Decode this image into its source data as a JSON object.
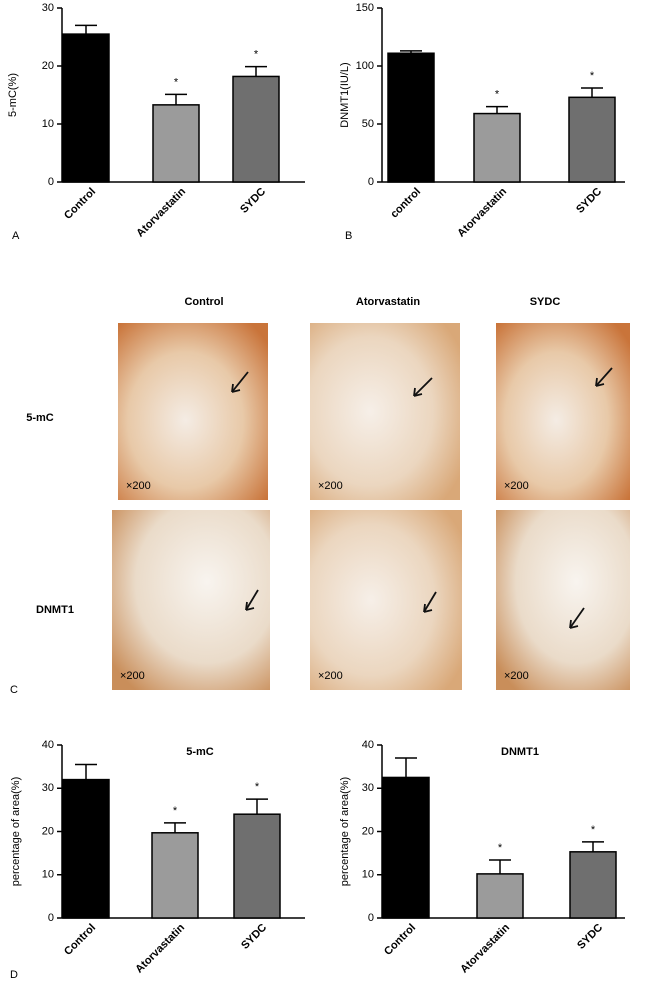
{
  "chart_data": [
    {
      "type": "bar",
      "panel": "A",
      "ylabel": "5-mC(%)",
      "categories": [
        "Control",
        "Atorvastatin",
        "SYDC"
      ],
      "values": [
        25.5,
        13.3,
        18.2
      ],
      "errors": [
        1.5,
        1.8,
        1.7
      ],
      "significance": [
        null,
        "*",
        "*"
      ],
      "colors": [
        "#000000",
        "#9b9b9b",
        "#6f6f6f"
      ],
      "ylim": [
        0,
        30
      ],
      "yticks": [
        0,
        10,
        20,
        30
      ]
    },
    {
      "type": "bar",
      "panel": "B",
      "ylabel": "DNMT1(IU/L)",
      "categories": [
        "control",
        "Atorvastatin",
        "SYDC"
      ],
      "values": [
        111,
        59,
        73
      ],
      "errors": [
        2,
        6,
        8
      ],
      "significance": [
        null,
        "*",
        "*"
      ],
      "colors": [
        "#000000",
        "#9b9b9b",
        "#6f6f6f"
      ],
      "ylim": [
        0,
        150
      ],
      "yticks": [
        0,
        50,
        100,
        150
      ]
    },
    {
      "type": "bar",
      "panel": "D",
      "title": "5-mC",
      "ylabel": "percentage of area(%)",
      "categories": [
        "Control",
        "Atorvastatin",
        "SYDC"
      ],
      "values": [
        32,
        19.7,
        24
      ],
      "errors": [
        3.5,
        2.3,
        3.5
      ],
      "significance": [
        null,
        "*",
        "*"
      ],
      "colors": [
        "#000000",
        "#9b9b9b",
        "#6f6f6f"
      ],
      "ylim": [
        0,
        40
      ],
      "yticks": [
        0,
        10,
        20,
        30,
        40
      ]
    },
    {
      "type": "bar",
      "title": "DNMT1",
      "ylabel": "percentage of area(%)",
      "categories": [
        "Control",
        "Atorvastatin",
        "SYDC"
      ],
      "values": [
        32.5,
        10.2,
        15.3
      ],
      "errors": [
        4.5,
        3.2,
        2.3
      ],
      "significance": [
        null,
        "*",
        "*"
      ],
      "colors": [
        "#000000",
        "#9b9b9b",
        "#6f6f6f"
      ],
      "ylim": [
        0,
        40
      ],
      "yticks": [
        0,
        10,
        20,
        30,
        40
      ]
    }
  ],
  "image_panel": {
    "label": "C",
    "columns": [
      "Control",
      "Atorvastatin",
      "SYDC"
    ],
    "rows": [
      "5-mC",
      "DNMT1"
    ],
    "magnification": [
      [
        "×200",
        "×200",
        "×200"
      ],
      [
        "×200",
        "×200",
        "×200"
      ]
    ]
  }
}
